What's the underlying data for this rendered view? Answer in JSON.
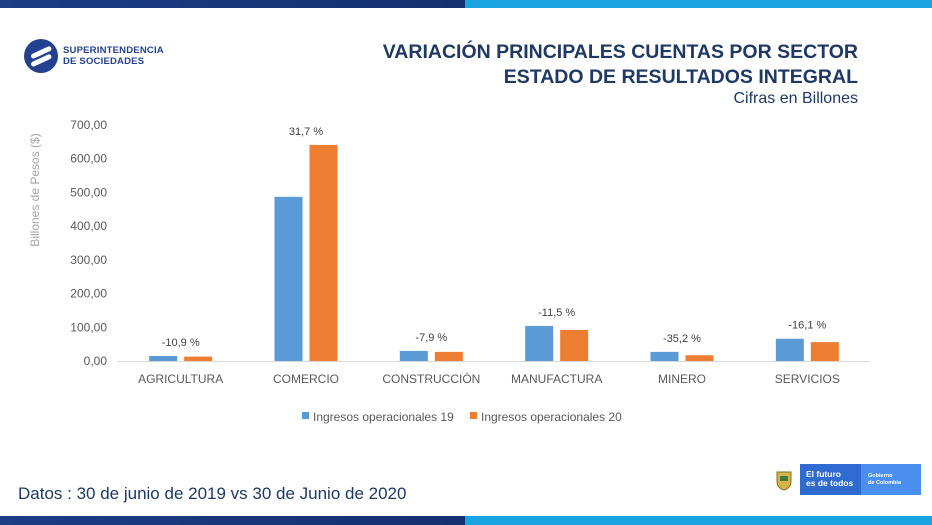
{
  "header": {
    "logo_line1": "SUPERINTENDENCIA",
    "logo_line2": "DE SOCIEDADES",
    "title_line1": "VARIACIÓN PRINCIPALES CUENTAS POR SECTOR",
    "title_line2": "ESTADO DE RESULTADOS INTEGRAL",
    "subtitle": "Cifras en Billones"
  },
  "footer": {
    "datos": "Datos : 30 de junio de 2019 vs 30 de Junio de 2020",
    "gov_line1": "El futuro",
    "gov_line2": "es de todos",
    "gov_right1": "Gobierno",
    "gov_right2": "de Colombia"
  },
  "colors": {
    "series19": "#5b9bd5",
    "series20": "#ed7d31",
    "brand_dark": "#1b3d86",
    "brand_light": "#1aa4e2"
  },
  "chart_data": {
    "type": "bar",
    "title": "",
    "xlabel": "",
    "ylabel": "Billones de Pesos ($)",
    "ylim": [
      0,
      700
    ],
    "yticks": [
      "0,00",
      "100,00",
      "200,00",
      "300,00",
      "400,00",
      "500,00",
      "600,00",
      "700,00"
    ],
    "grid": false,
    "legend_position": "bottom",
    "categories": [
      "AGRICULTURA",
      "COMERCIO",
      "CONSTRUCCIÓN",
      "MANUFACTURA",
      "MINERO",
      "SERVICIOS"
    ],
    "series": [
      {
        "name": "Ingresos operacionales 19",
        "values": [
          15,
          487,
          30,
          104,
          27,
          66
        ]
      },
      {
        "name": "Ingresos operacionales 20",
        "values": [
          13,
          641,
          27,
          92,
          17,
          56
        ]
      }
    ],
    "annotations": [
      "-10,9 %",
      "31,7 %",
      "-7,9 %",
      "-11,5 %",
      "-35,2 %",
      "-16,1 %"
    ]
  }
}
